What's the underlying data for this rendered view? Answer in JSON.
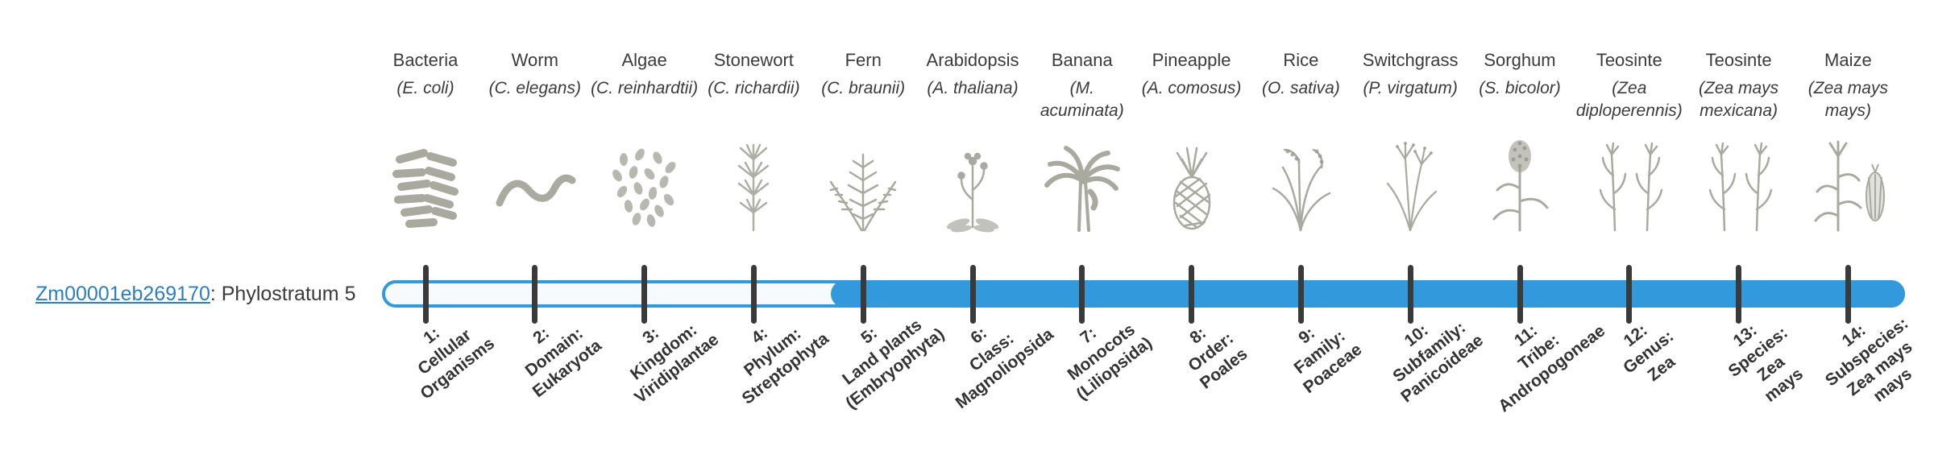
{
  "gene": {
    "id": "Zm00001eb269170",
    "suffix": ": Phylostratum 5"
  },
  "bar": {
    "filled_from_stratum": 5
  },
  "colors": {
    "bar_blue": "#3199dc",
    "track_bg": "#f7fafc",
    "tick_dark": "#3a3a3a",
    "link_blue": "#2d7dc1",
    "text_dark": "#3b3b3b",
    "illustration_gray": "#9b9b90"
  },
  "organisms": [
    {
      "name": "Bacteria",
      "sci": "(E. coli)",
      "icon": "bacteria-icon",
      "stratum_lines": [
        "1:",
        "Cellular",
        "Organisms"
      ]
    },
    {
      "name": "Worm",
      "sci": "(C. elegans)",
      "icon": "worm-icon",
      "stratum_lines": [
        "2:",
        "Domain:",
        "Eukaryota"
      ]
    },
    {
      "name": "Algae",
      "sci": "(C. reinhardtii)",
      "icon": "algae-icon",
      "stratum_lines": [
        "3:",
        "Kingdom:",
        "Viridiplantae"
      ]
    },
    {
      "name": "Stonewort",
      "sci": "(C. richardii)",
      "icon": "stonewort-icon",
      "stratum_lines": [
        "4:",
        "Phylum:",
        "Streptophyta"
      ]
    },
    {
      "name": "Fern",
      "sci": "(C. braunii)",
      "icon": "fern-icon",
      "stratum_lines": [
        "5:",
        "Land plants",
        "(Embryophyta)"
      ]
    },
    {
      "name": "Arabidopsis",
      "sci": "(A. thaliana)",
      "icon": "arabidopsis-icon",
      "stratum_lines": [
        "6:",
        "Class:",
        "Magnoliopsida"
      ]
    },
    {
      "name": "Banana",
      "sci": "(M. acuminata)",
      "icon": "banana-icon",
      "stratum_lines": [
        "7:",
        "Monocots",
        "(Liliopsida)"
      ]
    },
    {
      "name": "Pineapple",
      "sci": "(A. comosus)",
      "icon": "pineapple-icon",
      "stratum_lines": [
        "8:",
        "Order:",
        "Poales"
      ]
    },
    {
      "name": "Rice",
      "sci": "(O. sativa)",
      "icon": "rice-icon",
      "stratum_lines": [
        "9:",
        "Family:",
        "Poaceae"
      ]
    },
    {
      "name": "Switchgrass",
      "sci": "(P. virgatum)",
      "icon": "switchgrass-icon",
      "stratum_lines": [
        "10:",
        "Subfamily:",
        "Panicoideae"
      ]
    },
    {
      "name": "Sorghum",
      "sci": "(S. bicolor)",
      "icon": "sorghum-icon",
      "stratum_lines": [
        "11:",
        "Tribe:",
        "Andropogoneae"
      ]
    },
    {
      "name": "Teosinte",
      "sci": "(Zea diploperennis)",
      "icon": "teosinte-icon",
      "stratum_lines": [
        "12:",
        "Genus:",
        "Zea"
      ]
    },
    {
      "name": "Teosinte",
      "sci": "(Zea mays mexicana)",
      "icon": "teosinte-icon",
      "stratum_lines": [
        "13:",
        "Species:",
        "Zea",
        "mays"
      ]
    },
    {
      "name": "Maize",
      "sci": "(Zea mays mays)",
      "icon": "maize-icon",
      "stratum_lines": [
        "14:",
        "Subspecies:",
        "Zea mays",
        "mays"
      ]
    }
  ]
}
